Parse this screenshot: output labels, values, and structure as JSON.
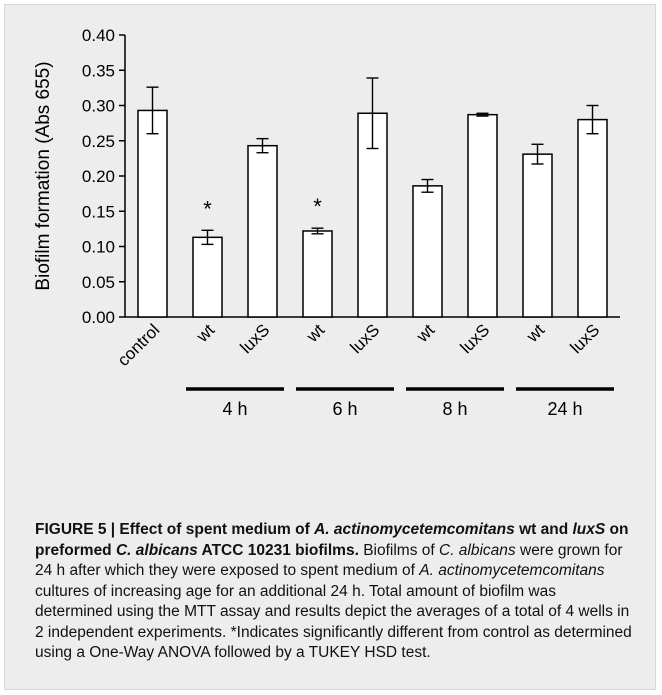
{
  "chart_data": {
    "type": "bar",
    "title": "",
    "ylabel": "Biofilm formation (Abs 655)",
    "xlabel": "",
    "ylim": [
      0,
      0.4
    ],
    "yticks": [
      "0.00",
      "0.05",
      "0.10",
      "0.15",
      "0.20",
      "0.25",
      "0.30",
      "0.35",
      "0.40"
    ],
    "grid": false,
    "categories": [
      "control",
      "wt",
      "luxS",
      "wt",
      "luxS",
      "wt",
      "luxS",
      "wt",
      "luxS"
    ],
    "values": [
      0.293,
      0.113,
      0.243,
      0.122,
      0.289,
      0.186,
      0.287,
      0.231,
      0.28
    ],
    "errors": [
      0.033,
      0.01,
      0.01,
      0.004,
      0.05,
      0.009,
      0.002,
      0.014,
      0.02
    ],
    "significant": [
      false,
      true,
      false,
      true,
      false,
      false,
      false,
      false,
      false
    ],
    "significance_marker": "*",
    "groups": [
      {
        "label": "4 h",
        "start": 1,
        "end": 2
      },
      {
        "label": "6 h",
        "start": 3,
        "end": 4
      },
      {
        "label": "8 h",
        "start": 5,
        "end": 6
      },
      {
        "label": "24 h",
        "start": 7,
        "end": 8
      }
    ],
    "bar_color": "#ffffff",
    "line_color": "#000000"
  },
  "caption": {
    "heading": [
      {
        "text": "FIGURE 5 | Effect of spent medium of ",
        "style": "bold"
      },
      {
        "text": "A. actinomycetemcomitans",
        "style": "bold-italic"
      },
      {
        "text": " wt and ",
        "style": "bold"
      },
      {
        "text": "luxS",
        "style": "bold-italic"
      },
      {
        "text": " on preformed ",
        "style": "bold"
      },
      {
        "text": "C. albicans",
        "style": "bold-italic"
      },
      {
        "text": " ATCC 10231 biofilms.",
        "style": "bold"
      }
    ],
    "body": [
      {
        "text": " Biofilms of ",
        "style": "normal"
      },
      {
        "text": "C. albicans",
        "style": "italic"
      },
      {
        "text": " were grown for 24 h after which they were exposed to spent medium of ",
        "style": "normal"
      },
      {
        "text": "A. actinomycetemcomitans",
        "style": "italic"
      },
      {
        "text": " cultures of increasing age for an additional 24 h. Total amount of biofilm was determined using the MTT assay and results depict the averages of a total of 4 wells in 2 independent experiments. *Indicates significantly different from control as determined using a One-Way ANOVA followed by a TUKEY HSD test.",
        "style": "normal"
      }
    ]
  }
}
